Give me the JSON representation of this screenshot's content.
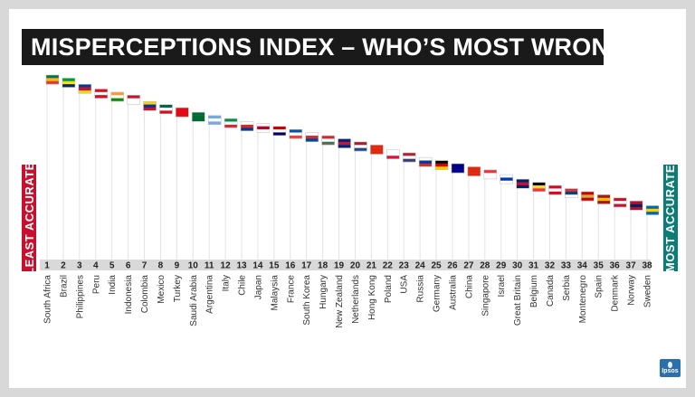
{
  "title": "MISPERCEPTIONS INDEX – WHO’S MOST WRONG?",
  "left_label": "LEAST ACCURATE",
  "right_label": "MOST ACCURATE",
  "logo_text": "Ipsos",
  "colors": {
    "title_bg": "#1a1a1a",
    "least": "#c8102e",
    "most": "#0c7d74",
    "rank_bar": "#d9d9d9"
  },
  "chart_data": {
    "type": "scatter",
    "title": "MISPERCEPTIONS INDEX – WHO’S MOST WRONG?",
    "categories": [
      "South Africa",
      "Brazil",
      "Philippines",
      "Peru",
      "India",
      "Indonesia",
      "Colombia",
      "Mexico",
      "Turkey",
      "Saudi Arabia",
      "Argentina",
      "Italy",
      "Chile",
      "Japan",
      "Malaysia",
      "France",
      "South Korea",
      "Hungary",
      "New Zealand",
      "Netherlands",
      "Hong Kong",
      "Poland",
      "USA",
      "Russia",
      "Germany",
      "Australia",
      "China",
      "Singapore",
      "Israel",
      "Great Britain",
      "Belgium",
      "Canada",
      "Serbia",
      "Montenegro",
      "Spain",
      "Denmark",
      "Norway",
      "Sweden"
    ],
    "ranks": [
      1,
      2,
      3,
      4,
      5,
      6,
      7,
      8,
      9,
      10,
      11,
      12,
      13,
      14,
      15,
      16,
      17,
      18,
      19,
      20,
      21,
      22,
      23,
      24,
      25,
      26,
      27,
      28,
      29,
      30,
      31,
      32,
      33,
      34,
      35,
      36,
      37,
      38
    ],
    "values": [
      100,
      98,
      94,
      91,
      89,
      87,
      83,
      81,
      79,
      76,
      74,
      72,
      70,
      69,
      67,
      65,
      63,
      61,
      59,
      57,
      55,
      52,
      50,
      47,
      45,
      43,
      41,
      39,
      36,
      33,
      31,
      29,
      27,
      25,
      23,
      21,
      19,
      16
    ],
    "ylim": [
      0,
      100
    ],
    "flag_colors": [
      [
        "#007a4d",
        "#ffb612",
        "#de3831"
      ],
      [
        "#009c3b",
        "#ffdf00",
        "#002776"
      ],
      [
        "#0038a8",
        "#ce1126",
        "#fcd116"
      ],
      [
        "#d91023",
        "#ffffff",
        "#d91023"
      ],
      [
        "#ff9933",
        "#ffffff",
        "#138808"
      ],
      [
        "#ce1126",
        "#ffffff",
        "#ffffff"
      ],
      [
        "#fcd116",
        "#003893",
        "#ce1126"
      ],
      [
        "#006847",
        "#ffffff",
        "#ce1126"
      ],
      [
        "#e30a17",
        "#e30a17",
        "#e30a17"
      ],
      [
        "#006c35",
        "#006c35",
        "#006c35"
      ],
      [
        "#74acdf",
        "#ffffff",
        "#74acdf"
      ],
      [
        "#009246",
        "#ffffff",
        "#ce2b37"
      ],
      [
        "#ffffff",
        "#d52b1e",
        "#0039a6"
      ],
      [
        "#ffffff",
        "#bc002d",
        "#ffffff"
      ],
      [
        "#cc0001",
        "#ffffff",
        "#010066"
      ],
      [
        "#0055a4",
        "#ffffff",
        "#ef4135"
      ],
      [
        "#ffffff",
        "#cd2e3a",
        "#0047a0"
      ],
      [
        "#ce2939",
        "#ffffff",
        "#477050"
      ],
      [
        "#00247d",
        "#cc142b",
        "#00247d"
      ],
      [
        "#ae1c28",
        "#ffffff",
        "#21468b"
      ],
      [
        "#de2910",
        "#de2910",
        "#de2910"
      ],
      [
        "#ffffff",
        "#ffffff",
        "#dc143c"
      ],
      [
        "#b22234",
        "#ffffff",
        "#3c3b6e"
      ],
      [
        "#ffffff",
        "#0039a6",
        "#d52b1e"
      ],
      [
        "#000000",
        "#dd0000",
        "#ffce00"
      ],
      [
        "#00008b",
        "#00008b",
        "#00008b"
      ],
      [
        "#de2910",
        "#de2910",
        "#de2910"
      ],
      [
        "#ef3340",
        "#ffffff",
        "#ffffff"
      ],
      [
        "#ffffff",
        "#0038b8",
        "#ffffff"
      ],
      [
        "#012169",
        "#c8102e",
        "#012169"
      ],
      [
        "#000000",
        "#fdda24",
        "#ef3340"
      ],
      [
        "#d80621",
        "#ffffff",
        "#d80621"
      ],
      [
        "#c6363c",
        "#0c4076",
        "#ffffff"
      ],
      [
        "#c40308",
        "#d3ae3b",
        "#c40308"
      ],
      [
        "#aa151b",
        "#f1bf00",
        "#aa151b"
      ],
      [
        "#c8102e",
        "#ffffff",
        "#c8102e"
      ],
      [
        "#ba0c2f",
        "#00205b",
        "#ba0c2f"
      ],
      [
        "#006aa7",
        "#fecc00",
        "#006aa7"
      ]
    ]
  }
}
